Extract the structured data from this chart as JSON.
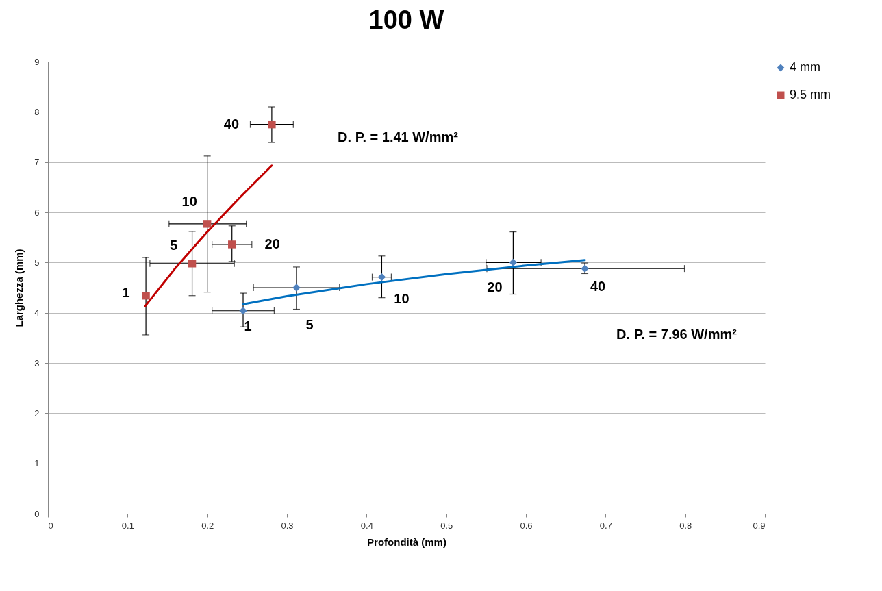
{
  "chart_data": {
    "type": "scatter",
    "title": "100 W",
    "xlabel": "Profondità (mm)",
    "ylabel": "Larghezza (mm)",
    "xlim": [
      0,
      0.9
    ],
    "xticks": [
      0,
      0.1,
      0.2,
      0.3,
      0.4,
      0.5,
      0.6,
      0.7,
      0.8,
      0.9
    ],
    "ylim": [
      0,
      9
    ],
    "yticks": [
      0,
      1,
      2,
      3,
      4,
      5,
      6,
      7,
      8,
      9
    ],
    "grid": "y",
    "legend": "right",
    "series": [
      {
        "name": "4 mm",
        "color": "#4f81bd",
        "marker": "diamond",
        "x": [
          0.245,
          0.312,
          0.419,
          0.584,
          0.674
        ],
        "values": [
          4.04,
          4.5,
          4.71,
          5.0,
          4.88
        ],
        "errors": [
          [
            3.72,
            4.39
          ],
          [
            4.07,
            4.91
          ],
          [
            4.3,
            5.13
          ],
          [
            4.37,
            5.61
          ],
          [
            4.78,
            4.99
          ]
        ],
        "xerrors": [
          [
            0.206,
            0.284
          ],
          [
            0.258,
            0.366
          ],
          [
            0.407,
            0.431
          ],
          [
            0.55,
            0.619
          ],
          [
            0.551,
            0.799
          ]
        ]
      },
      {
        "name": "9.5 mm",
        "color": "#c0504d",
        "marker": "square",
        "x": [
          0.123,
          0.181,
          0.2,
          0.231,
          0.281
        ],
        "values": [
          4.34,
          4.98,
          5.77,
          5.36,
          7.75
        ],
        "errors": [
          [
            3.56,
            5.1
          ],
          [
            4.34,
            5.62
          ],
          [
            4.41,
            7.12
          ],
          [
            5.02,
            5.73
          ],
          [
            7.39,
            8.1
          ]
        ],
        "xerrors": [
          null,
          [
            0.128,
            0.234
          ],
          [
            0.152,
            0.249
          ],
          [
            0.206,
            0.256
          ],
          [
            0.254,
            0.308
          ]
        ]
      },
      {
        "type": "line",
        "color": "#0070c0",
        "x": [
          0.245,
          0.3,
          0.4,
          0.5,
          0.6,
          0.674
        ],
        "values": [
          4.17,
          4.33,
          4.57,
          4.77,
          4.94,
          5.05
        ]
      },
      {
        "type": "line",
        "color": "#c00000",
        "x": [
          0.122,
          0.16,
          0.2,
          0.24,
          0.281
        ],
        "values": [
          4.13,
          4.89,
          5.61,
          6.28,
          6.93
        ]
      }
    ],
    "annotations": [
      {
        "text": "1",
        "x": 0.123,
        "y": 4.34
      },
      {
        "text": "5",
        "x": 0.181,
        "y": 4.98
      },
      {
        "text": "10",
        "x": 0.2,
        "y": 5.77
      },
      {
        "text": "20",
        "x": 0.231,
        "y": 5.36
      },
      {
        "text": "40",
        "x": 0.281,
        "y": 7.75
      },
      {
        "text": "1",
        "x": 0.245,
        "y": 4.04
      },
      {
        "text": "5",
        "x": 0.312,
        "y": 4.5
      },
      {
        "text": "10",
        "x": 0.419,
        "y": 4.71
      },
      {
        "text": "20",
        "x": 0.584,
        "y": 5.0
      },
      {
        "text": "40",
        "x": 0.674,
        "y": 4.88
      },
      "D. P. = 1.41 W/mm²",
      "D. P. = 7.96 W/mm²"
    ]
  }
}
